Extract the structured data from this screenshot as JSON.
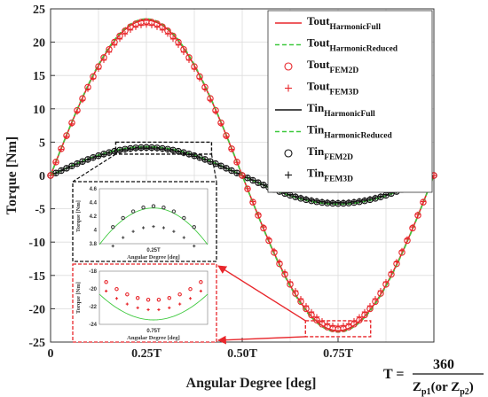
{
  "chart_data": {
    "type": "line",
    "xlabel": "Angular Degree [deg]",
    "ylabel": "Torque [Nm]",
    "xlim": [
      0,
      1
    ],
    "ylim": [
      -25,
      25
    ],
    "xticks": [
      0,
      0.25,
      0.5,
      0.75
    ],
    "xticklabels": [
      "0",
      "0.25T",
      "0.50T",
      "0.75T"
    ],
    "yticks": [
      -25,
      -20,
      -15,
      -10,
      -5,
      0,
      5,
      10,
      15,
      20,
      25
    ],
    "yticklabels": [
      "-25",
      "-20",
      "-15",
      "-10",
      "-5",
      "0",
      "5",
      "10",
      "15",
      "20",
      "25"
    ],
    "grid": true,
    "legend_position": "top-right",
    "x": [
      0,
      0.0625,
      0.125,
      0.1875,
      0.25,
      0.3125,
      0.375,
      0.4375,
      0.5,
      0.5625,
      0.625,
      0.6875,
      0.75,
      0.8125,
      0.875,
      0.9375,
      1
    ],
    "series": [
      {
        "name": "Tout HarmonicFull",
        "color": "#e8262b",
        "style": "solid",
        "amplitude": 23.3,
        "values": [
          0,
          8.9,
          16.5,
          21.5,
          23.3,
          21.5,
          16.5,
          8.9,
          0,
          -8.9,
          -16.5,
          -21.5,
          -23.3,
          -21.5,
          -16.5,
          -8.9,
          0
        ]
      },
      {
        "name": "Tout HarmonicReduced",
        "color": "#3ec93e",
        "style": "dashed",
        "amplitude": 23.5,
        "values": [
          0,
          9.0,
          16.6,
          21.7,
          23.5,
          21.7,
          16.6,
          9.0,
          0,
          -9.0,
          -16.6,
          -21.7,
          -23.5,
          -21.7,
          -16.6,
          -9.0,
          0
        ]
      },
      {
        "name": "Tout FEM2D",
        "color": "#e8262b",
        "style": "circle",
        "amplitude": 23.1,
        "values": [
          0,
          8.8,
          16.3,
          21.3,
          23.1,
          21.3,
          16.3,
          8.8,
          0,
          -8.8,
          -16.3,
          -21.3,
          -23.1,
          -21.3,
          -16.3,
          -8.8,
          0
        ]
      },
      {
        "name": "Tout FEM3D",
        "color": "#e8262b",
        "style": "plus",
        "amplitude": 22.6,
        "values": [
          0,
          8.6,
          16.0,
          20.9,
          22.6,
          20.9,
          16.0,
          8.6,
          0,
          -8.6,
          -16.0,
          -20.9,
          -22.6,
          -20.9,
          -16.0,
          -8.6,
          0
        ]
      },
      {
        "name": "Tin HarmonicFull",
        "color": "#111111",
        "style": "solid",
        "amplitude": 4.25,
        "values": [
          0,
          1.6,
          3.0,
          3.9,
          4.25,
          3.9,
          3.0,
          1.6,
          0,
          -1.6,
          -3.0,
          -3.9,
          -4.25,
          -3.9,
          -3.0,
          -1.6,
          0
        ]
      },
      {
        "name": "Tin HarmonicReduced",
        "color": "#3ec93e",
        "style": "dashed",
        "amplitude": 4.32,
        "values": [
          0,
          1.65,
          3.05,
          4.0,
          4.32,
          4.0,
          3.05,
          1.65,
          0,
          -1.65,
          -3.05,
          -4.0,
          -4.32,
          -4.0,
          -3.05,
          -1.65,
          0
        ]
      },
      {
        "name": "Tin FEM2D",
        "color": "#111111",
        "style": "circle",
        "amplitude": 4.2,
        "values": [
          0,
          1.6,
          2.97,
          3.88,
          4.2,
          3.88,
          2.97,
          1.6,
          0,
          -1.6,
          -2.97,
          -3.88,
          -4.2,
          -3.88,
          -2.97,
          -1.6,
          0
        ]
      },
      {
        "name": "Tin FEM3D",
        "color": "#111111",
        "style": "plus",
        "amplitude": 4.05,
        "values": [
          0,
          1.55,
          2.86,
          3.74,
          4.05,
          3.74,
          2.86,
          1.55,
          0,
          -1.55,
          -2.86,
          -3.74,
          -4.05,
          -3.74,
          -2.86,
          -1.55,
          0
        ]
      }
    ],
    "legend": [
      {
        "base": "Tout",
        "sub": "HarmonicFull"
      },
      {
        "base": "Tout",
        "sub": "HarmonicReduced"
      },
      {
        "base": "Tout",
        "sub": "FEM2D"
      },
      {
        "base": "Tout",
        "sub": "FEM3D"
      },
      {
        "base": "Tin",
        "sub": "HarmonicFull"
      },
      {
        "base": "Tin",
        "sub": "HarmonicReduced"
      },
      {
        "base": "Tin",
        "sub": "FEM2D"
      },
      {
        "base": "Tin",
        "sub": "FEM3D"
      }
    ],
    "insets": [
      {
        "zoom_of": "Tin near 0.25T",
        "xlabel": "Angular Degree [deg]",
        "ylabel": "Torque [Nm]",
        "ylim": [
          3.8,
          4.6
        ],
        "yticklabels": [
          "4.6",
          "4.4",
          "4.2",
          "4",
          "3.8"
        ],
        "xticklabels": [
          "0.25T"
        ],
        "border_color": "#111111"
      },
      {
        "zoom_of": "Tout near 0.75T",
        "xlabel": "Angular Degree [deg]",
        "ylabel": "Torque [Nm]",
        "ylim": [
          -24,
          -18
        ],
        "yticklabels": [
          "-18",
          "-20",
          "-22",
          "-24"
        ],
        "xticklabels": [
          "0.75T"
        ],
        "border_color": "#e8262b"
      }
    ],
    "formula": {
      "lhs": "T =",
      "numerator": "360",
      "denominator": "Z",
      "den_sub1": "p1",
      "den_mid": "(or Z",
      "den_sub2": "p2",
      "den_end": ")"
    }
  }
}
